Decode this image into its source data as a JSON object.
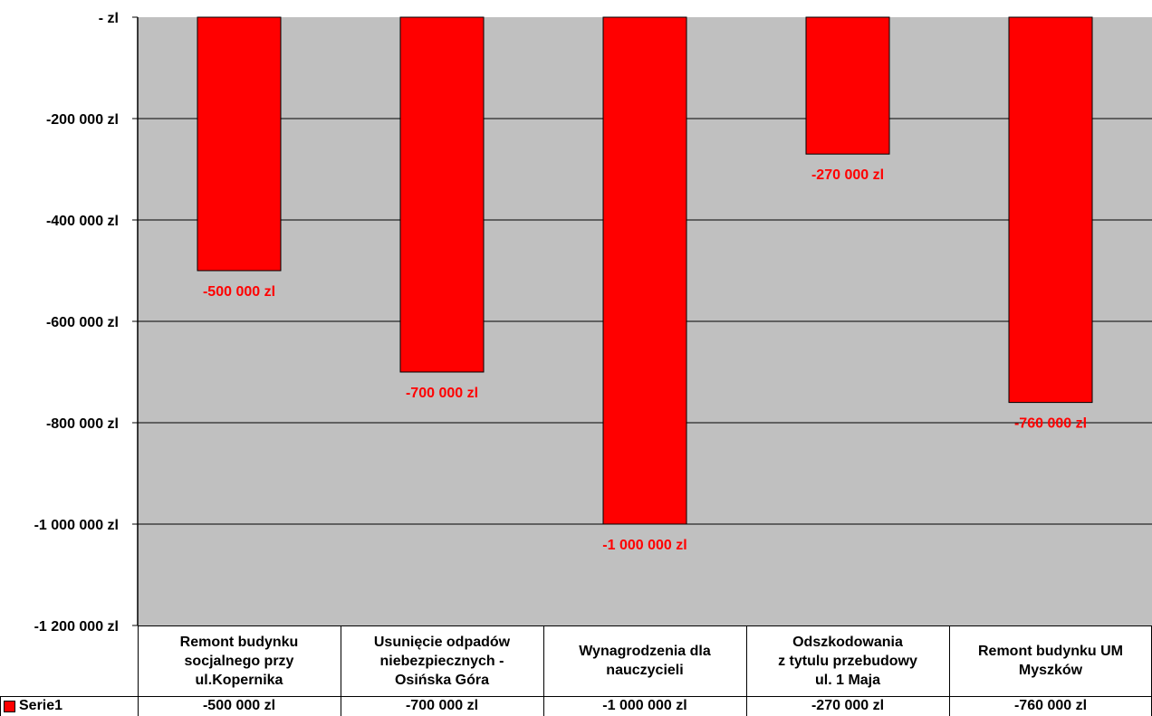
{
  "chart_data": {
    "type": "bar",
    "categories": [
      [
        "Remont budynku",
        "socjalnego przy",
        "ul.Kopernika"
      ],
      [
        "Usunięcie odpadów",
        "niebezpiecznych -",
        "Osińska Góra"
      ],
      [
        "Wynagrodzenia dla",
        "nauczycieli"
      ],
      [
        "Odszkodowania",
        "z tytulu przebudowy",
        "ul. 1 Maja"
      ],
      [
        "Remont budynku UM",
        "Myszków"
      ]
    ],
    "series": [
      {
        "name": "Serie1",
        "values": [
          -500000,
          -700000,
          -1000000,
          -270000,
          -760000
        ],
        "data_labels": [
          "-500 000 zl",
          "-700 000 zl",
          "-1 000 000 zl",
          "-270 000 zl",
          "-760 000 zl"
        ],
        "color": "#ff0000"
      }
    ],
    "y_ticks": [
      {
        "value": 0,
        "label": "-    zl"
      },
      {
        "value": -200000,
        "label": "-200 000 zl"
      },
      {
        "value": -400000,
        "label": "-400 000 zl"
      },
      {
        "value": -600000,
        "label": "-600 000 zl"
      },
      {
        "value": -800000,
        "label": "-800 000 zl"
      },
      {
        "value": -1000000,
        "label": "-1 000 000 zl"
      },
      {
        "value": -1200000,
        "label": "-1 200 000 zl"
      }
    ],
    "ylim": [
      -1200000,
      0
    ],
    "grid": true,
    "plot_background": "#c0c0c0",
    "data_table": true,
    "legend_placement": "data-table"
  }
}
